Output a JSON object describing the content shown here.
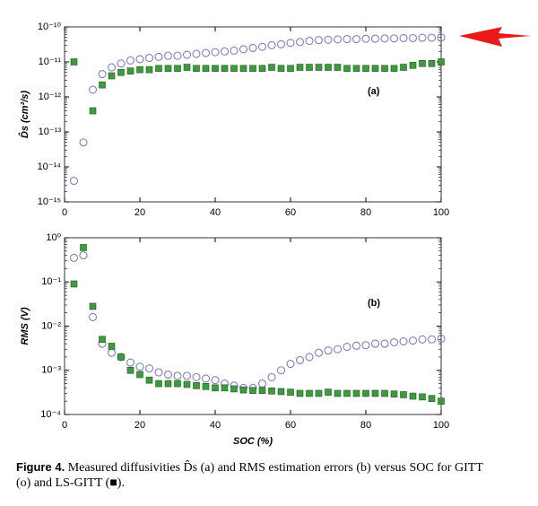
{
  "chart_data": [
    {
      "type": "scatter",
      "panel_label": "(a)",
      "ylabel": "D̂s (cm²/s)",
      "yscale": "log",
      "xlim": [
        0,
        100
      ],
      "xticks": [
        0,
        20,
        40,
        60,
        80,
        100
      ],
      "ylim": [
        1e-15,
        1e-10
      ],
      "yticks": [
        {
          "value": 1e-15,
          "label": "10⁻¹⁵"
        },
        {
          "value": 1e-14,
          "label": "10⁻¹⁴"
        },
        {
          "value": 1e-13,
          "label": "10⁻¹³"
        },
        {
          "value": 1e-12,
          "label": "10⁻¹²"
        },
        {
          "value": 1e-11,
          "label": "10⁻¹¹"
        },
        {
          "value": 1e-10,
          "label": "10⁻¹⁰"
        }
      ],
      "x": [
        2.5,
        5,
        7.5,
        10,
        12.5,
        15,
        17.5,
        20,
        22.5,
        25,
        27.5,
        30,
        32.5,
        35,
        37.5,
        40,
        42.5,
        45,
        47.5,
        50,
        52.5,
        55,
        57.5,
        60,
        62.5,
        65,
        67.5,
        70,
        72.5,
        75,
        77.5,
        80,
        82.5,
        85,
        87.5,
        90,
        92.5,
        95,
        97.5,
        100
      ],
      "series": [
        {
          "marker": "circle",
          "color": "#7b80c2",
          "values": [
            4e-15,
            5e-14,
            1.6e-12,
            4.5e-12,
            7e-12,
            9e-12,
            1.1e-11,
            1.2e-11,
            1.3e-11,
            1.4e-11,
            1.5e-11,
            1.5e-11,
            1.6e-11,
            1.7e-11,
            1.8e-11,
            1.9e-11,
            2e-11,
            2.1e-11,
            2.3e-11,
            2.5e-11,
            2.7e-11,
            3e-11,
            3.2e-11,
            3.5e-11,
            3.7e-11,
            4e-11,
            4.2e-11,
            4.3e-11,
            4.4e-11,
            4.5e-11,
            4.5e-11,
            4.6e-11,
            4.6e-11,
            4.7e-11,
            4.7e-11,
            4.8e-11,
            4.8e-11,
            4.9e-11,
            4.9e-11,
            5e-11
          ]
        },
        {
          "marker": "square",
          "color": "#3d9a3d",
          "values": [
            1e-11,
            null,
            4e-13,
            2.2e-12,
            4e-12,
            5e-12,
            5.5e-12,
            6e-12,
            6e-12,
            6.5e-12,
            6.5e-12,
            6.5e-12,
            7e-12,
            6.5e-12,
            6.5e-12,
            6.5e-12,
            6.5e-12,
            6.5e-12,
            6.5e-12,
            6.5e-12,
            6.5e-12,
            7e-12,
            6.5e-12,
            6.5e-12,
            7e-12,
            7e-12,
            7e-12,
            7e-12,
            7e-12,
            6.5e-12,
            6.5e-12,
            6.5e-12,
            6.5e-12,
            6.5e-12,
            6.5e-12,
            7e-12,
            8e-12,
            9e-12,
            9e-12,
            1e-11
          ]
        }
      ]
    },
    {
      "type": "scatter",
      "panel_label": "(b)",
      "ylabel": "RMS (V)",
      "xlabel": "SOC (%)",
      "yscale": "log",
      "xlim": [
        0,
        100
      ],
      "xticks": [
        0,
        20,
        40,
        60,
        80,
        100
      ],
      "ylim": [
        0.0001,
        1
      ],
      "yticks": [
        {
          "value": 0.0001,
          "label": "10⁻⁴"
        },
        {
          "value": 0.001,
          "label": "10⁻³"
        },
        {
          "value": 0.01,
          "label": "10⁻²"
        },
        {
          "value": 0.1,
          "label": "10⁻¹"
        },
        {
          "value": 1,
          "label": "10⁰"
        }
      ],
      "x": [
        2.5,
        5,
        7.5,
        10,
        12.5,
        15,
        17.5,
        20,
        22.5,
        25,
        27.5,
        30,
        32.5,
        35,
        37.5,
        40,
        42.5,
        45,
        47.5,
        50,
        52.5,
        55,
        57.5,
        60,
        62.5,
        65,
        67.5,
        70,
        72.5,
        75,
        77.5,
        80,
        82.5,
        85,
        87.5,
        90,
        92.5,
        95,
        97.5,
        100
      ],
      "series": [
        {
          "marker": "circle",
          "color": "#7b80c2",
          "values": [
            0.35,
            0.4,
            0.016,
            0.004,
            0.0025,
            0.002,
            0.0015,
            0.0012,
            0.0011,
            0.0009,
            0.0008,
            0.00075,
            0.00075,
            0.0007,
            0.00065,
            0.0006,
            0.0005,
            0.00045,
            0.0004,
            0.0004,
            0.0005,
            0.0007,
            0.001,
            0.0014,
            0.0017,
            0.002,
            0.0025,
            0.0028,
            0.003,
            0.0034,
            0.0036,
            0.0037,
            0.004,
            0.004,
            0.0043,
            0.0045,
            0.0047,
            0.005,
            0.005,
            0.0052
          ]
        },
        {
          "marker": "square",
          "color": "#3d9a3d",
          "values": [
            0.09,
            0.6,
            0.028,
            0.005,
            0.0035,
            0.002,
            0.001,
            0.0008,
            0.0006,
            0.0005,
            0.0005,
            0.0005,
            0.00048,
            0.00045,
            0.00043,
            0.0004,
            0.0004,
            0.00038,
            0.00036,
            0.00035,
            0.00035,
            0.00034,
            0.00033,
            0.00032,
            0.0003,
            0.0003,
            0.0003,
            0.00032,
            0.0003,
            0.0003,
            0.0003,
            0.0003,
            0.0003,
            0.0003,
            0.00029,
            0.00028,
            0.00026,
            0.00025,
            0.00023,
            0.0002
          ]
        }
      ]
    }
  ],
  "caption": {
    "label": "Figure 4.",
    "text": "Measured diffusivities D̂s (a) and RMS estimation errors (b) versus SOC for GITT (o) and LS-GITT (■)."
  }
}
